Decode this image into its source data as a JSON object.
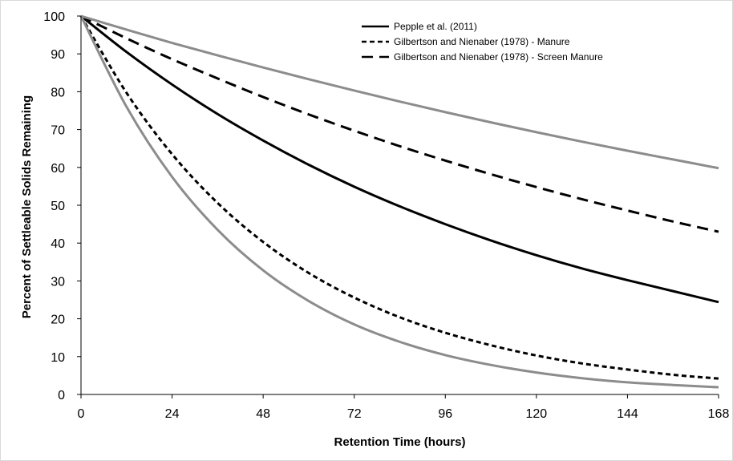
{
  "chart_data": {
    "type": "line",
    "title": "",
    "xlabel": "Retention Time (hours)",
    "ylabel": "Percent of Settleable Solids Remaining",
    "xlim": [
      0,
      168
    ],
    "ylim": [
      0,
      100
    ],
    "xticks": [
      0,
      24,
      48,
      72,
      96,
      120,
      144,
      168
    ],
    "yticks": [
      0,
      10,
      20,
      30,
      40,
      50,
      60,
      70,
      80,
      90,
      100
    ],
    "grid": false,
    "legend_position": "top-right",
    "series": [
      {
        "name": "Pepple et al. (2011)",
        "style": "solid",
        "color": "#000000",
        "x": [
          0,
          12,
          24,
          36,
          48,
          60,
          72,
          84,
          96,
          108,
          120,
          132,
          144,
          156,
          168
        ],
        "y": [
          100,
          90.5,
          81.9,
          74.1,
          67.1,
          60.7,
          54.9,
          49.7,
          45.0,
          40.7,
          36.8,
          33.3,
          30.2,
          27.3,
          24.4
        ]
      },
      {
        "name": "Gilbertson and Nienaber (1978) - Manure",
        "style": "short-dash",
        "color": "#000000",
        "x": [
          0,
          12,
          24,
          36,
          48,
          60,
          72,
          84,
          96,
          108,
          120,
          132,
          144,
          156,
          168
        ],
        "y": [
          100,
          79.7,
          63.5,
          50.6,
          40.3,
          32.1,
          25.6,
          20.4,
          16.3,
          13.0,
          10.3,
          8.2,
          6.6,
          5.2,
          4.2
        ]
      },
      {
        "name": "Gilbertson and Nienaber (1978) - Screen Manure",
        "style": "long-dash",
        "color": "#000000",
        "x": [
          0,
          12,
          24,
          36,
          48,
          60,
          72,
          84,
          96,
          108,
          120,
          132,
          144,
          156,
          168
        ],
        "y": [
          100,
          94.1,
          88.6,
          83.5,
          78.6,
          74.0,
          69.7,
          65.6,
          61.8,
          58.2,
          54.8,
          51.6,
          48.6,
          45.7,
          43.0
        ]
      },
      {
        "style": "solid",
        "color": "#8c8c8c",
        "x": [
          0,
          12,
          24,
          36,
          48,
          60,
          72,
          84,
          96,
          108,
          120,
          132,
          144,
          156,
          168
        ],
        "y": [
          100,
          96.4,
          92.9,
          89.6,
          86.4,
          83.3,
          80.3,
          77.4,
          74.6,
          71.9,
          69.3,
          66.8,
          64.4,
          62.1,
          59.8
        ]
      },
      {
        "style": "solid",
        "color": "#8c8c8c",
        "x": [
          0,
          12,
          24,
          36,
          48,
          60,
          72,
          84,
          96,
          108,
          120,
          132,
          144,
          156,
          168
        ],
        "y": [
          100,
          76.0,
          57.5,
          43.5,
          32.8,
          24.7,
          18.5,
          13.9,
          10.4,
          7.8,
          5.8,
          4.3,
          3.2,
          2.5,
          1.9
        ]
      }
    ]
  }
}
